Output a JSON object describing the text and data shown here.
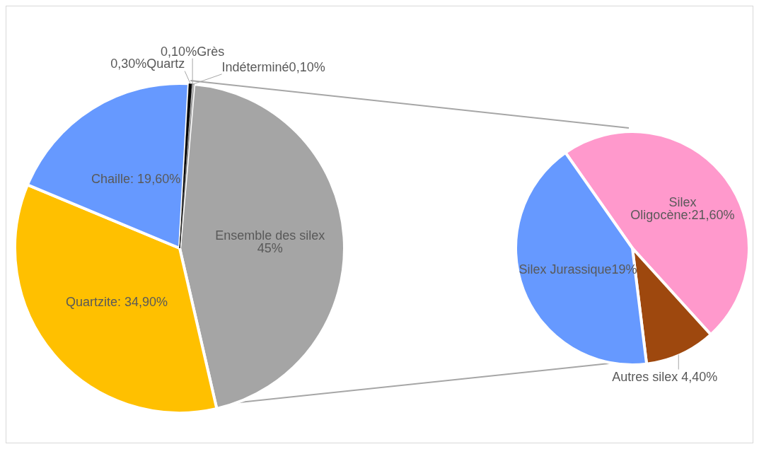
{
  "chart_data": [
    {
      "type": "pie",
      "categories": [
        "Ensemble des silex",
        "Quartzite",
        "Chaille",
        "Quartz",
        "Grès",
        "Indéterminé"
      ],
      "values": [
        45,
        34.9,
        19.6,
        0.3,
        0.1,
        0.1
      ],
      "colors": [
        "#a5a5a5",
        "#ffc000",
        "#6699ff",
        "#000000",
        "#ffffff",
        "#ffffff"
      ],
      "value_labels": [
        " 45%",
        ": 34,90%",
        ": 19,60%",
        "0,30%",
        "0,10%",
        "0,10%"
      ]
    },
    {
      "type": "pie",
      "categories": [
        "Silex Oligocène",
        "Autres silex",
        "Silex Jurassique"
      ],
      "values": [
        21.6,
        4.4,
        19
      ],
      "colors": [
        "#ff99cc",
        "#9e480e",
        "#6699ff"
      ],
      "value_labels": [
        ":21,60%",
        " 4,40%",
        "19%"
      ]
    }
  ]
}
